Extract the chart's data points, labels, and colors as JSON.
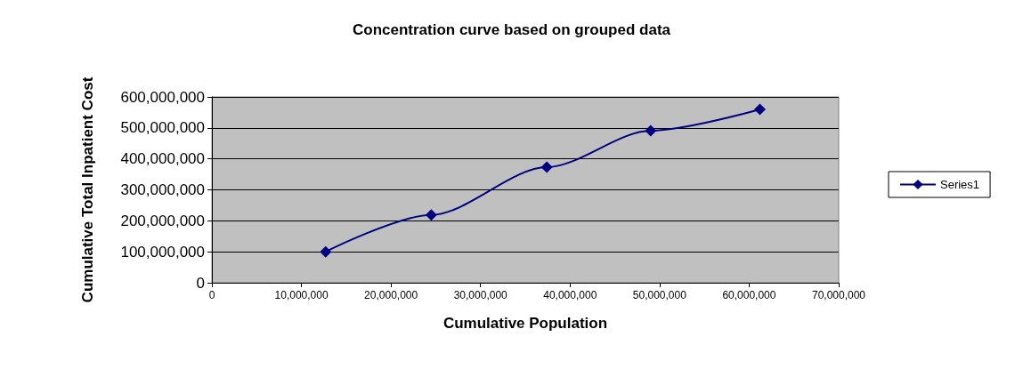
{
  "chart_data": {
    "type": "line",
    "title": "Concentration curve based on grouped data",
    "xlabel": "Cumulative Population",
    "ylabel": "Cumulative Total Inpatient Cost",
    "series": [
      {
        "name": "Series1",
        "color": "#000080",
        "x": [
          12700000,
          24500000,
          37400000,
          49000000,
          61200000
        ],
        "values": [
          100000000,
          219000000,
          373000000,
          491000000,
          560000000
        ]
      }
    ],
    "xlim": [
      0,
      70000000
    ],
    "xticks": [
      {
        "value": 0,
        "label": "0"
      },
      {
        "value": 10000000,
        "label": "10,000,000"
      },
      {
        "value": 20000000,
        "label": "20,000,000"
      },
      {
        "value": 30000000,
        "label": "30,000,000"
      },
      {
        "value": 40000000,
        "label": "40,000,000"
      },
      {
        "value": 50000000,
        "label": "50,000,000"
      },
      {
        "value": 60000000,
        "label": "60,000,000"
      },
      {
        "value": 70000000,
        "label": "70,000,000"
      }
    ],
    "ylim": [
      0,
      600000000
    ],
    "yticks": [
      {
        "value": 0,
        "label": "0"
      },
      {
        "value": 100000000,
        "label": "100,000,000"
      },
      {
        "value": 200000000,
        "label": "200,000,000"
      },
      {
        "value": 300000000,
        "label": "300,000,000"
      },
      {
        "value": 400000000,
        "label": "400,000,000"
      },
      {
        "value": 500000000,
        "label": "500,000,000"
      },
      {
        "value": 600000000,
        "label": "600,000,000"
      }
    ],
    "grid": "y",
    "legend": "right",
    "marker": "diamond",
    "line_style": "solid"
  }
}
